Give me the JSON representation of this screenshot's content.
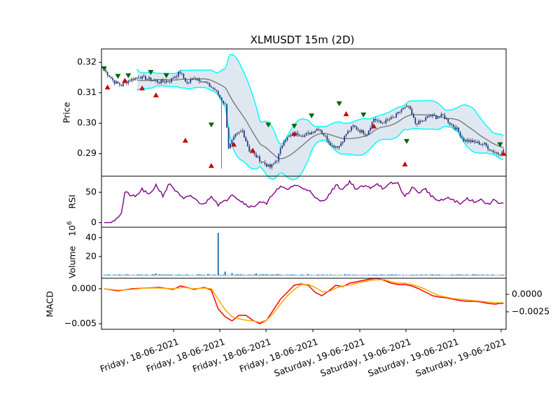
{
  "chart_data": {
    "type": "candlestick",
    "title": "XLMUSDT 15m (2D)",
    "colors": {
      "candle_up": "#1f3a8a",
      "candle_down": "#1f3a8a",
      "bb_band": "#00ffff",
      "bb_fill": "#dbe6f0",
      "bb_mid": "#808080",
      "rsi": "#800080",
      "volume": "#1f77b4",
      "macd": "#ff0000",
      "signal": "#ffa500",
      "buy_marker": "#cc0000",
      "sell_marker": "#006400"
    },
    "x_tick_labels": [
      "Friday, 18-06-2021",
      "Friday, 18-06-2021",
      "Friday, 18-06-2021",
      "Friday, 18-06-2021",
      "Saturday, 19-06-2021",
      "Saturday, 19-06-2021",
      "Saturday, 19-06-2021",
      "Saturday, 19-06-2021"
    ],
    "price_panel": {
      "ylabel": "Price",
      "yticks": [
        "0.29",
        "0.30",
        "0.31",
        "0.32"
      ],
      "ylim": [
        0.2835,
        0.3235
      ],
      "close_keypoints": [
        [
          0,
          0.3175
        ],
        [
          6,
          0.3135
        ],
        [
          10,
          0.3125
        ],
        [
          14,
          0.314
        ],
        [
          20,
          0.3152
        ],
        [
          26,
          0.3145
        ],
        [
          32,
          0.3135
        ],
        [
          38,
          0.314
        ],
        [
          44,
          0.3168
        ],
        [
          48,
          0.313
        ],
        [
          52,
          0.315
        ],
        [
          58,
          0.3135
        ],
        [
          64,
          0.311
        ],
        [
          70,
          0.306
        ],
        [
          72,
          0.292
        ],
        [
          76,
          0.296
        ],
        [
          80,
          0.2975
        ],
        [
          84,
          0.291
        ],
        [
          88,
          0.289
        ],
        [
          92,
          0.287
        ],
        [
          96,
          0.2855
        ],
        [
          100,
          0.288
        ],
        [
          104,
          0.2945
        ],
        [
          108,
          0.296
        ],
        [
          112,
          0.2965
        ],
        [
          116,
          0.296
        ],
        [
          120,
          0.297
        ],
        [
          124,
          0.2985
        ],
        [
          128,
          0.2955
        ],
        [
          132,
          0.2925
        ],
        [
          136,
          0.2925
        ],
        [
          140,
          0.2965
        ],
        [
          144,
          0.299
        ],
        [
          148,
          0.2975
        ],
        [
          152,
          0.2965
        ],
        [
          156,
          0.3015
        ],
        [
          160,
          0.3
        ],
        [
          164,
          0.301
        ],
        [
          168,
          0.302
        ],
        [
          172,
          0.3045
        ],
        [
          176,
          0.3055
        ],
        [
          180,
          0.3
        ],
        [
          184,
          0.3005
        ],
        [
          188,
          0.3025
        ],
        [
          192,
          0.302
        ],
        [
          196,
          0.3025
        ],
        [
          200,
          0.3
        ],
        [
          204,
          0.298
        ],
        [
          208,
          0.2945
        ],
        [
          212,
          0.294
        ],
        [
          216,
          0.2935
        ],
        [
          220,
          0.293
        ],
        [
          224,
          0.291
        ],
        [
          228,
          0.29
        ],
        [
          231,
          0.291
        ]
      ],
      "sell_markers": [
        [
          0,
          0.318
        ],
        [
          8,
          0.3155
        ],
        [
          14,
          0.3157
        ],
        [
          27,
          0.3168
        ],
        [
          36,
          0.3157
        ],
        [
          62,
          0.2995
        ],
        [
          95,
          0.2995
        ],
        [
          110,
          0.2991
        ],
        [
          120,
          0.3025
        ],
        [
          136,
          0.3065
        ],
        [
          150,
          0.3028
        ],
        [
          175,
          0.2941
        ],
        [
          229,
          0.293
        ]
      ],
      "buy_markers": [
        [
          2,
          0.3118
        ],
        [
          12,
          0.314
        ],
        [
          22,
          0.3115
        ],
        [
          30,
          0.3092
        ],
        [
          47,
          0.2943
        ],
        [
          62,
          0.286
        ],
        [
          75,
          0.293
        ],
        [
          86,
          0.291
        ],
        [
          110,
          0.2965
        ],
        [
          140,
          0.303
        ],
        [
          156,
          0.299
        ],
        [
          174,
          0.2865
        ],
        [
          231,
          0.29
        ]
      ]
    },
    "rsi_panel": {
      "ylabel": "RSI",
      "yticks": [
        "0",
        "50"
      ],
      "ylim": [
        -3,
        72
      ],
      "keypoints": [
        [
          0,
          0
        ],
        [
          4,
          0
        ],
        [
          6,
          5
        ],
        [
          10,
          15
        ],
        [
          12,
          50
        ],
        [
          18,
          42
        ],
        [
          22,
          55
        ],
        [
          26,
          45
        ],
        [
          30,
          62
        ],
        [
          34,
          45
        ],
        [
          38,
          65
        ],
        [
          42,
          50
        ],
        [
          46,
          38
        ],
        [
          50,
          45
        ],
        [
          54,
          35
        ],
        [
          58,
          30
        ],
        [
          62,
          45
        ],
        [
          66,
          30
        ],
        [
          70,
          35
        ],
        [
          74,
          48
        ],
        [
          78,
          38
        ],
        [
          82,
          30
        ],
        [
          86,
          25
        ],
        [
          90,
          35
        ],
        [
          94,
          30
        ],
        [
          98,
          50
        ],
        [
          102,
          58
        ],
        [
          106,
          55
        ],
        [
          110,
          62
        ],
        [
          114,
          58
        ],
        [
          118,
          55
        ],
        [
          122,
          40
        ],
        [
          126,
          35
        ],
        [
          130,
          45
        ],
        [
          134,
          62
        ],
        [
          138,
          55
        ],
        [
          142,
          68
        ],
        [
          146,
          55
        ],
        [
          150,
          60
        ],
        [
          154,
          58
        ],
        [
          158,
          65
        ],
        [
          162,
          55
        ],
        [
          166,
          65
        ],
        [
          170,
          65
        ],
        [
          174,
          42
        ],
        [
          178,
          58
        ],
        [
          182,
          50
        ],
        [
          186,
          55
        ],
        [
          190,
          42
        ],
        [
          194,
          35
        ],
        [
          198,
          40
        ],
        [
          202,
          38
        ],
        [
          206,
          30
        ],
        [
          210,
          40
        ],
        [
          214,
          35
        ],
        [
          218,
          38
        ],
        [
          222,
          30
        ],
        [
          226,
          38
        ],
        [
          229,
          32
        ]
      ]
    },
    "volume_panel": {
      "ylabel": "Volume",
      "scale_label": "1e6",
      "yticks": [
        "20",
        "40"
      ],
      "ylim": [
        0,
        48
      ],
      "spikes": [
        [
          66,
          45
        ],
        [
          70,
          4
        ],
        [
          74,
          2.5
        ],
        [
          30,
          2
        ],
        [
          88,
          2
        ],
        [
          60,
          1.5
        ],
        [
          100,
          1.5
        ],
        [
          118,
          1.5
        ]
      ]
    },
    "macd_panel": {
      "ylabel": "MACD",
      "yticks_left": [
        "0.000",
        "−0.005"
      ],
      "yticks_right": [
        "0.0000",
        "−0.0025"
      ],
      "ylim": [
        -0.0054,
        0.0011
      ],
      "macd_keypoints": [
        [
          0,
          0.0
        ],
        [
          8,
          -0.0003
        ],
        [
          16,
          0.0
        ],
        [
          24,
          0.0001
        ],
        [
          32,
          0.0002
        ],
        [
          40,
          -0.0001
        ],
        [
          44,
          0.0004
        ],
        [
          48,
          0.0002
        ],
        [
          52,
          -0.0001
        ],
        [
          58,
          0.0002
        ],
        [
          62,
          -0.0002
        ],
        [
          66,
          -0.0029
        ],
        [
          70,
          -0.004
        ],
        [
          74,
          -0.0046
        ],
        [
          78,
          -0.0038
        ],
        [
          82,
          -0.0038
        ],
        [
          86,
          -0.0045
        ],
        [
          90,
          -0.005
        ],
        [
          94,
          -0.0045
        ],
        [
          98,
          -0.003
        ],
        [
          102,
          -0.0015
        ],
        [
          106,
          -0.0005
        ],
        [
          110,
          0.0005
        ],
        [
          114,
          0.0007
        ],
        [
          118,
          0.0005
        ],
        [
          122,
          -0.0005
        ],
        [
          126,
          -0.001
        ],
        [
          130,
          -0.0003
        ],
        [
          134,
          0.0005
        ],
        [
          138,
          0.0003
        ],
        [
          142,
          0.0008
        ],
        [
          146,
          0.001
        ],
        [
          150,
          0.0012
        ],
        [
          154,
          0.0014
        ],
        [
          158,
          0.0015
        ],
        [
          162,
          0.0012
        ],
        [
          166,
          0.0008
        ],
        [
          170,
          0.0006
        ],
        [
          174,
          0.0006
        ],
        [
          178,
          0.0004
        ],
        [
          182,
          0.0
        ],
        [
          186,
          -0.0005
        ],
        [
          190,
          -0.001
        ],
        [
          194,
          -0.0012
        ],
        [
          198,
          -0.0013
        ],
        [
          202,
          -0.0015
        ],
        [
          206,
          -0.0017
        ],
        [
          210,
          -0.0018
        ],
        [
          214,
          -0.0018
        ],
        [
          218,
          -0.0019
        ],
        [
          222,
          -0.0021
        ],
        [
          226,
          -0.0022
        ],
        [
          229,
          -0.0021
        ]
      ],
      "signal_keypoints": [
        [
          0,
          0.0
        ],
        [
          8,
          -0.0002
        ],
        [
          16,
          -0.0001
        ],
        [
          24,
          0.0001
        ],
        [
          32,
          0.0001
        ],
        [
          40,
          0.0
        ],
        [
          46,
          0.0002
        ],
        [
          52,
          0.0
        ],
        [
          58,
          0.0001
        ],
        [
          62,
          0.0
        ],
        [
          66,
          -0.0015
        ],
        [
          70,
          -0.003
        ],
        [
          74,
          -0.004
        ],
        [
          78,
          -0.0043
        ],
        [
          82,
          -0.0045
        ],
        [
          86,
          -0.0046
        ],
        [
          90,
          -0.0048
        ],
        [
          94,
          -0.0045
        ],
        [
          98,
          -0.0035
        ],
        [
          102,
          -0.0022
        ],
        [
          106,
          -0.001
        ],
        [
          110,
          -0.0001
        ],
        [
          114,
          0.0006
        ],
        [
          118,
          0.0006
        ],
        [
          122,
          0.0002
        ],
        [
          126,
          -0.0004
        ],
        [
          130,
          -0.0004
        ],
        [
          134,
          0.0001
        ],
        [
          138,
          0.0004
        ],
        [
          142,
          0.0005
        ],
        [
          146,
          0.0008
        ],
        [
          150,
          0.001
        ],
        [
          154,
          0.0012
        ],
        [
          158,
          0.0013
        ],
        [
          162,
          0.0013
        ],
        [
          166,
          0.001
        ],
        [
          170,
          0.0008
        ],
        [
          174,
          0.0008
        ],
        [
          178,
          0.0006
        ],
        [
          182,
          0.0003
        ],
        [
          186,
          -0.0001
        ],
        [
          190,
          -0.0006
        ],
        [
          194,
          -0.001
        ],
        [
          198,
          -0.0012
        ],
        [
          202,
          -0.0014
        ],
        [
          206,
          -0.0015
        ],
        [
          210,
          -0.0016
        ],
        [
          214,
          -0.0017
        ],
        [
          218,
          -0.0018
        ],
        [
          222,
          -0.0019
        ],
        [
          226,
          -0.002
        ],
        [
          229,
          -0.002
        ]
      ]
    }
  }
}
